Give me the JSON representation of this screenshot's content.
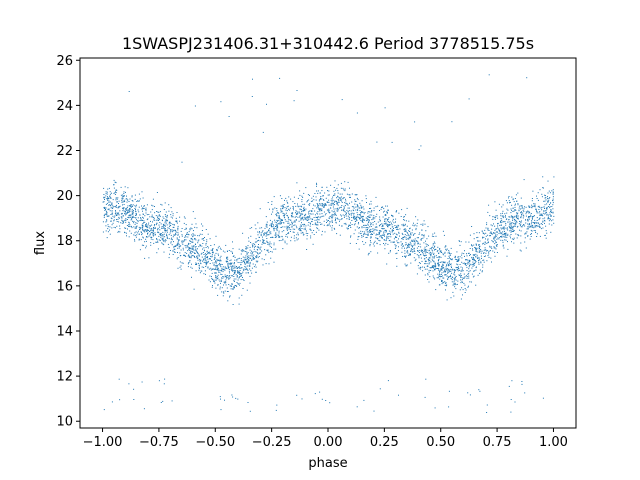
{
  "chart_data": {
    "type": "scatter",
    "title": "1SWASPJ231406.31+310442.6 Period 3778515.75s",
    "xlabel": "phase",
    "ylabel": "flux",
    "xlim": [
      -1.1,
      1.1
    ],
    "ylim": [
      9.7,
      26.1
    ],
    "xticks": [
      -1.0,
      -0.75,
      -0.5,
      -0.25,
      0.0,
      0.25,
      0.5,
      0.75,
      1.0
    ],
    "xtick_labels": [
      "−1.00",
      "−0.75",
      "−0.50",
      "−0.25",
      "0.00",
      "0.25",
      "0.50",
      "0.75",
      "1.00"
    ],
    "yticks": [
      10,
      12,
      14,
      16,
      18,
      20,
      22,
      24,
      26
    ],
    "ytick_labels": [
      "10",
      "12",
      "14",
      "16",
      "18",
      "20",
      "22",
      "24",
      "26"
    ],
    "grid": false,
    "point_color": "#1f77b4",
    "series": [
      {
        "name": "",
        "x": [
          -1.0,
          -0.95,
          -0.9,
          -0.85,
          -0.8,
          -0.75,
          -0.7,
          -0.65,
          -0.6,
          -0.55,
          -0.5,
          -0.45,
          -0.4,
          -0.35,
          -0.3,
          -0.25,
          -0.2,
          -0.15,
          -0.1,
          -0.05,
          0.0,
          0.05,
          0.1,
          0.15,
          0.2,
          0.25,
          0.3,
          0.35,
          0.4,
          0.45,
          0.5,
          0.55,
          0.6,
          0.65,
          0.7,
          0.75,
          0.8,
          0.85,
          0.9,
          0.95,
          1.0
        ],
        "y": [
          19.4,
          19.6,
          19.3,
          18.9,
          18.7,
          18.6,
          18.4,
          18.0,
          17.8,
          17.4,
          16.9,
          16.6,
          16.7,
          17.3,
          18.0,
          18.5,
          18.9,
          19.0,
          19.0,
          19.3,
          19.4,
          19.6,
          19.3,
          18.9,
          18.7,
          18.6,
          18.4,
          18.0,
          17.8,
          17.4,
          16.9,
          16.6,
          16.7,
          17.3,
          18.0,
          18.5,
          18.9,
          19.0,
          19.0,
          19.3,
          19.4
        ]
      }
    ],
    "annotations": []
  }
}
